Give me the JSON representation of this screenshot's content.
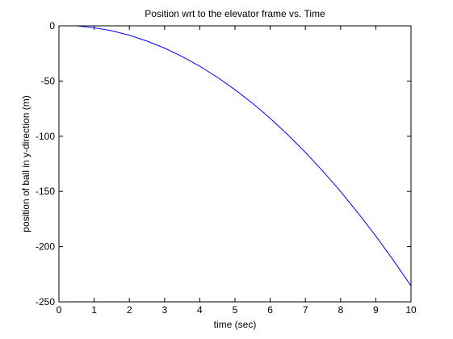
{
  "chart_data": {
    "type": "line",
    "title": "Position wrt to the elevator frame vs. Time",
    "xlabel": "time (sec)",
    "ylabel": "position of ball in y-direction (m)",
    "xlim": [
      0,
      10
    ],
    "ylim": [
      -250,
      0
    ],
    "xticks": [
      0,
      1,
      2,
      3,
      4,
      5,
      6,
      7,
      8,
      9,
      10
    ],
    "yticks": [
      0,
      -50,
      -100,
      -150,
      -200,
      -250
    ],
    "grid": false,
    "series": [
      {
        "color": "#0000ff",
        "x": [
          0.5,
          1,
          1.5,
          2,
          2.5,
          3,
          3.5,
          4,
          4.5,
          5,
          5.5,
          6,
          6.5,
          7,
          7.5,
          8,
          8.5,
          9,
          9.5,
          10
        ],
        "y": [
          0.0,
          -1.7,
          -4.5,
          -8.5,
          -13.8,
          -20.2,
          -27.8,
          -36.6,
          -46.6,
          -57.8,
          -70.2,
          -83.8,
          -98.6,
          -114.6,
          -131.7,
          -150.1,
          -169.7,
          -190.4,
          -212.4,
          -235.5
        ]
      }
    ]
  }
}
